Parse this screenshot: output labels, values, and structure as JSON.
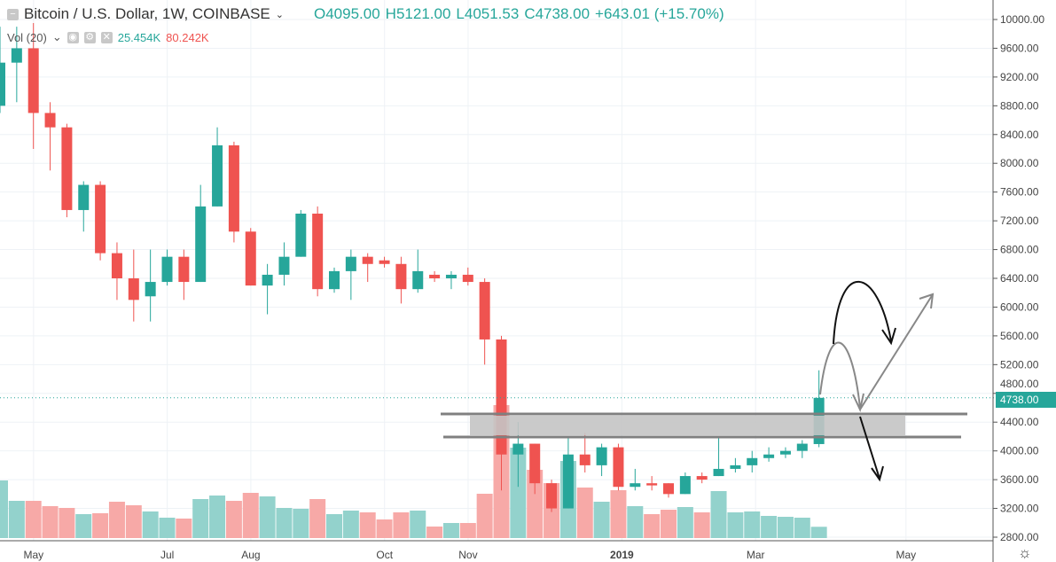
{
  "header": {
    "symbol": "Bitcoin / U.S. Dollar, 1W, COINBASE",
    "open": "O4095.00",
    "high": "H5121.00",
    "low": "L4051.53",
    "close": "C4738.00",
    "change": "+643.01 (+15.70%)"
  },
  "volume": {
    "label": "Vol (20)",
    "value": "25.454K",
    "ma": "80.242K"
  },
  "last_price": "4738.00",
  "colors": {
    "up": "#26a69a",
    "down": "#ef5350",
    "vol_up": "#93d2cc",
    "vol_down": "#f7a9a7"
  },
  "chart_data": {
    "type": "candlestick",
    "price_ticks": [
      "10000.00",
      "9600.00",
      "9200.00",
      "8800.00",
      "8400.00",
      "8000.00",
      "7600.00",
      "7200.00",
      "6800.00",
      "6400.00",
      "6000.00",
      "5600.00",
      "5200.00",
      "4800.00",
      "4400.00",
      "4000.00",
      "3600.00",
      "3200.00",
      "2800.00"
    ],
    "time_labels": [
      {
        "label": "May",
        "i": 1
      },
      {
        "label": "Jul",
        "i": 9
      },
      {
        "label": "Aug",
        "i": 14
      },
      {
        "label": "Oct",
        "i": 22
      },
      {
        "label": "Nov",
        "i": 27
      },
      {
        "label": "2019",
        "i": 36.2
      },
      {
        "label": "Mar",
        "i": 44.2
      },
      {
        "label": "May",
        "i": 53.2
      }
    ],
    "ylim": [
      2800,
      10000
    ],
    "ohlcv": [
      [
        8800,
        9900,
        8700,
        9400,
        130
      ],
      [
        9400,
        9900,
        8850,
        9600,
        84
      ],
      [
        9600,
        9950,
        8200,
        8700,
        84
      ],
      [
        8700,
        8850,
        7900,
        8500,
        72
      ],
      [
        8500,
        8550,
        7250,
        7350,
        68
      ],
      [
        7350,
        7750,
        7050,
        7700,
        54
      ],
      [
        7700,
        7750,
        6650,
        6750,
        56
      ],
      [
        6750,
        6900,
        6100,
        6400,
        82
      ],
      [
        6400,
        6800,
        5800,
        6100,
        74
      ],
      [
        6150,
        6800,
        5800,
        6350,
        60
      ],
      [
        6350,
        6800,
        6300,
        6700,
        46
      ],
      [
        6700,
        6800,
        6100,
        6350,
        44
      ],
      [
        6350,
        7700,
        6350,
        7400,
        88
      ],
      [
        7400,
        8500,
        7400,
        8250,
        96
      ],
      [
        8250,
        8300,
        6900,
        7050,
        84
      ],
      [
        7050,
        7100,
        6300,
        6300,
        102
      ],
      [
        6300,
        6600,
        5900,
        6450,
        94
      ],
      [
        6450,
        6900,
        6300,
        6700,
        68
      ],
      [
        6700,
        7350,
        6700,
        7300,
        66
      ],
      [
        7300,
        7400,
        6150,
        6250,
        88
      ],
      [
        6250,
        6550,
        6200,
        6500,
        54
      ],
      [
        6500,
        6800,
        6100,
        6700,
        62
      ],
      [
        6700,
        6750,
        6350,
        6600,
        58
      ],
      [
        6650,
        6700,
        6550,
        6600,
        42
      ],
      [
        6600,
        6700,
        6050,
        6250,
        58
      ],
      [
        6250,
        6800,
        6200,
        6500,
        62
      ],
      [
        6450,
        6500,
        6350,
        6400,
        26
      ],
      [
        6400,
        6500,
        6250,
        6450,
        34
      ],
      [
        6450,
        6550,
        6300,
        6350,
        34
      ],
      [
        6350,
        6400,
        5200,
        5550,
        100
      ],
      [
        5550,
        5600,
        3450,
        3950,
        300
      ],
      [
        3950,
        4400,
        3500,
        4100,
        204
      ],
      [
        4100,
        4100,
        3400,
        3550,
        154
      ],
      [
        3550,
        3600,
        3150,
        3200,
        124
      ],
      [
        3200,
        4200,
        3200,
        3950,
        174
      ],
      [
        3950,
        4250,
        3700,
        3800,
        114
      ],
      [
        3800,
        4100,
        3650,
        4050,
        82
      ],
      [
        4050,
        4100,
        3450,
        3500,
        108
      ],
      [
        3500,
        3750,
        3450,
        3550,
        72
      ],
      [
        3550,
        3650,
        3450,
        3520,
        54
      ],
      [
        3550,
        3550,
        3350,
        3400,
        64
      ],
      [
        3400,
        3700,
        3400,
        3650,
        70
      ],
      [
        3650,
        3700,
        3550,
        3600,
        58
      ],
      [
        3650,
        4200,
        3650,
        3750,
        106
      ],
      [
        3750,
        3900,
        3700,
        3800,
        58
      ],
      [
        3800,
        4000,
        3700,
        3900,
        60
      ],
      [
        3900,
        4050,
        3850,
        3950,
        50
      ],
      [
        3950,
        4050,
        3900,
        4000,
        48
      ],
      [
        4000,
        4150,
        3900,
        4100,
        46
      ],
      [
        4095,
        5121,
        4051.53,
        4738,
        25.454
      ]
    ]
  }
}
